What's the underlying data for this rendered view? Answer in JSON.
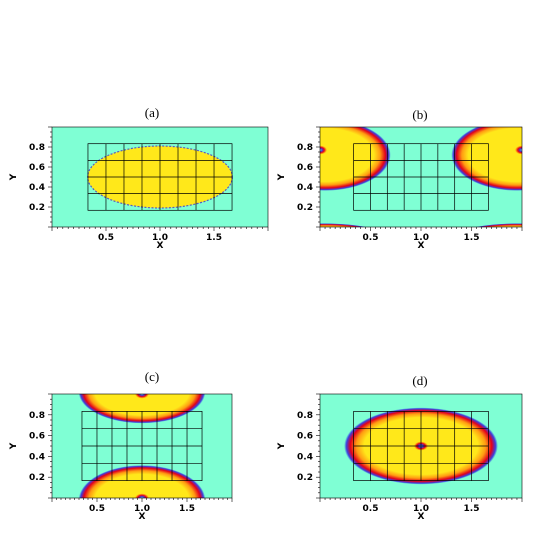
{
  "colors": {
    "background": "#7fffd4",
    "fill": "#ffe81a",
    "halo_red": "#e3001b",
    "halo_blue": "#3a3fe0",
    "grid": "#000000"
  },
  "chart_data": [
    {
      "type": "heatmap",
      "title": "(a)",
      "xlabel": "X",
      "ylabel": "Y",
      "xlim": [
        0,
        2
      ],
      "ylim": [
        0,
        1
      ],
      "xticks": [
        "0.5",
        "1.0",
        "1.5"
      ],
      "yticks": [
        "0.2",
        "0.4",
        "0.6",
        "0.8"
      ],
      "mesh": {
        "x_range": [
          0.333,
          1.667
        ],
        "y_range": [
          0.167,
          0.833
        ],
        "nx": 8,
        "ny": 4
      },
      "blobs": [
        {
          "cx": 1.0,
          "cy": 0.5,
          "rx": 0.67,
          "ry": 0.31,
          "halo": "thin"
        }
      ]
    },
    {
      "type": "heatmap",
      "title": "(b)",
      "xlabel": "X",
      "ylabel": "Y",
      "xlim": [
        0,
        2
      ],
      "ylim": [
        0,
        1
      ],
      "xticks": [
        "0.5",
        "1.0",
        "1.5"
      ],
      "yticks": [
        "0.2",
        "0.4",
        "0.6",
        "0.8"
      ],
      "mesh": {
        "x_range": [
          0.333,
          1.667
        ],
        "y_range": [
          0.167,
          0.833
        ],
        "nx": 8,
        "ny": 4
      },
      "blobs": [
        {
          "cx": 0.05,
          "cy": 0.72,
          "rx": 0.58,
          "ry": 0.32,
          "halo": "thick",
          "core": {
            "cx": 0.0,
            "cy": 0.77
          }
        },
        {
          "cx": 1.95,
          "cy": 0.72,
          "rx": 0.58,
          "ry": 0.32,
          "halo": "thick",
          "core": {
            "cx": 2.0,
            "cy": 0.77
          }
        },
        {
          "cx": 0.05,
          "cy": -0.12,
          "rx": 0.58,
          "ry": 0.14,
          "halo": "thick"
        },
        {
          "cx": 1.95,
          "cy": -0.12,
          "rx": 0.58,
          "ry": 0.14,
          "halo": "thick"
        }
      ]
    },
    {
      "type": "heatmap",
      "title": "(c)",
      "xlabel": "X",
      "ylabel": "Y",
      "xlim": [
        0,
        2
      ],
      "ylim": [
        0,
        1
      ],
      "xticks": [
        "0.5",
        "1.0",
        "1.5"
      ],
      "yticks": [
        "0.2",
        "0.4",
        "0.6",
        "0.8"
      ],
      "mesh": {
        "x_range": [
          0.333,
          1.667
        ],
        "y_range": [
          0.167,
          0.833
        ],
        "nx": 8,
        "ny": 4
      },
      "blobs": [
        {
          "cx": 1.0,
          "cy": 1.02,
          "rx": 0.63,
          "ry": 0.27,
          "halo": "thick",
          "core": {
            "cx": 1.0,
            "cy": 1.0
          }
        },
        {
          "cx": 1.0,
          "cy": -0.02,
          "rx": 0.63,
          "ry": 0.3,
          "halo": "thick",
          "core": {
            "cx": 1.0,
            "cy": 0.0
          }
        }
      ]
    },
    {
      "type": "heatmap",
      "title": "(d)",
      "xlabel": "X",
      "ylabel": "Y",
      "xlim": [
        0,
        2
      ],
      "ylim": [
        0,
        1
      ],
      "xticks": [
        "0.5",
        "1.0",
        "1.5"
      ],
      "yticks": [
        "0.2",
        "0.4",
        "0.6",
        "0.8"
      ],
      "mesh": {
        "x_range": [
          0.333,
          1.667
        ],
        "y_range": [
          0.167,
          0.833
        ],
        "nx": 8,
        "ny": 4
      },
      "blobs": [
        {
          "cx": 1.0,
          "cy": 0.5,
          "rx": 0.68,
          "ry": 0.33,
          "halo": "thick",
          "core": {
            "cx": 1.0,
            "cy": 0.5
          }
        }
      ]
    }
  ]
}
